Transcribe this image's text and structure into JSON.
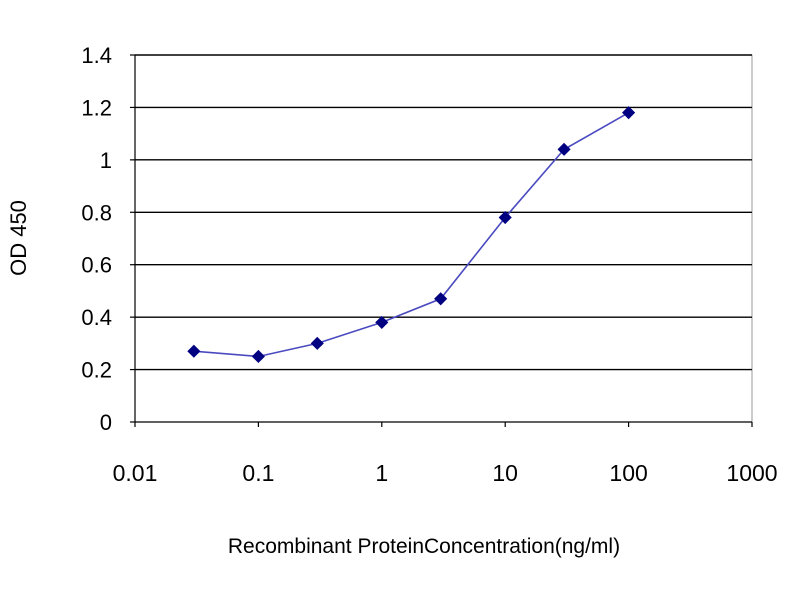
{
  "chart_data": {
    "type": "scatter",
    "title": "",
    "xlabel": "Recombinant ProteinConcentration(ng/ml)",
    "ylabel": "OD 450",
    "xscale": "log",
    "xlim": [
      0.01,
      1000
    ],
    "ylim": [
      0,
      1.4
    ],
    "x_ticks": [
      0.01,
      0.1,
      1,
      10,
      100,
      1000
    ],
    "x_tick_labels": [
      "0.01",
      "0.1",
      "1",
      "10",
      "100",
      "1000"
    ],
    "y_ticks": [
      0,
      0.2,
      0.4,
      0.6,
      0.8,
      1,
      1.2,
      1.4
    ],
    "y_tick_labels": [
      "0",
      "0.2",
      "0.4",
      "0.6",
      "0.8",
      "1",
      "1.2",
      "1.4"
    ],
    "grid": "horizontal",
    "legend": "none",
    "colors": {
      "plot_background": "#ffffff",
      "gridline": "#000000",
      "line": "#4a4ac0",
      "marker": "#000080"
    },
    "series": [
      {
        "marker": "diamond",
        "connected": true,
        "x": [
          0.03,
          0.1,
          0.3,
          1,
          3,
          10,
          30,
          100
        ],
        "y": [
          0.27,
          0.25,
          0.3,
          0.38,
          0.47,
          0.78,
          1.04,
          1.18
        ]
      }
    ]
  }
}
